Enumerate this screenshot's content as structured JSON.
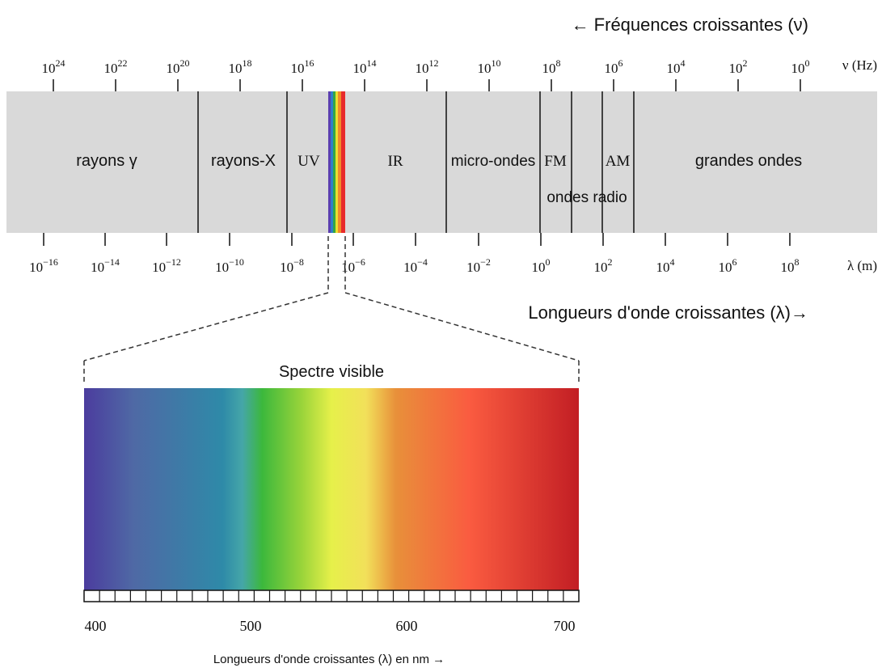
{
  "header": {
    "freq_title": "← Fréquences croissantes (ν)",
    "wave_title": "Longueurs d'onde croissantes (λ)→"
  },
  "frequency_axis": {
    "unit": "ν (Hz)",
    "ticks": [
      {
        "base": "10",
        "exp": "24"
      },
      {
        "base": "10",
        "exp": "22"
      },
      {
        "base": "10",
        "exp": "20"
      },
      {
        "base": "10",
        "exp": "18"
      },
      {
        "base": "10",
        "exp": "16"
      },
      {
        "base": "10",
        "exp": "14"
      },
      {
        "base": "10",
        "exp": "12"
      },
      {
        "base": "10",
        "exp": "10"
      },
      {
        "base": "10",
        "exp": "8"
      },
      {
        "base": "10",
        "exp": "6"
      },
      {
        "base": "10",
        "exp": "4"
      },
      {
        "base": "10",
        "exp": "2"
      },
      {
        "base": "10",
        "exp": "0"
      }
    ]
  },
  "wavelength_axis": {
    "unit": "λ (m)",
    "ticks": [
      {
        "base": "10",
        "exp": "−16"
      },
      {
        "base": "10",
        "exp": "−14"
      },
      {
        "base": "10",
        "exp": "−12"
      },
      {
        "base": "10",
        "exp": "−10"
      },
      {
        "base": "10",
        "exp": "−8"
      },
      {
        "base": "10",
        "exp": "−6"
      },
      {
        "base": "10",
        "exp": "−4"
      },
      {
        "base": "10",
        "exp": "−2"
      },
      {
        "base": "10",
        "exp": "0"
      },
      {
        "base": "10",
        "exp": "2"
      },
      {
        "base": "10",
        "exp": "4"
      },
      {
        "base": "10",
        "exp": "6"
      },
      {
        "base": "10",
        "exp": "8"
      }
    ]
  },
  "bands": {
    "gamma": "rayons γ",
    "xray": "rayons-X",
    "uv": "UV",
    "ir": "IR",
    "micro": "micro-ondes",
    "fm": "FM",
    "am": "AM",
    "radio": "ondes radio",
    "long": "grandes ondes"
  },
  "visible": {
    "title": "Spectre visible",
    "axis_labels": [
      "400",
      "500",
      "600",
      "700"
    ],
    "axis_title": "Longueurs d'onde croissantes (λ) en nm →"
  }
}
